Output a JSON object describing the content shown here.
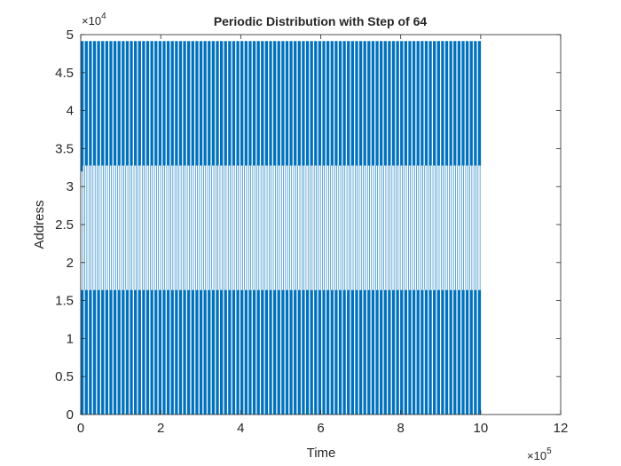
{
  "chart_data": {
    "type": "line",
    "title": "Periodic Distribution with Step of 64",
    "xlabel": "Time",
    "ylabel": "Address",
    "xlim": [
      0,
      1200000
    ],
    "ylim": [
      0,
      50000
    ],
    "x_ticks": [
      0,
      200000,
      400000,
      600000,
      800000,
      1000000,
      1200000
    ],
    "x_tick_labels": [
      "0",
      "2",
      "4",
      "6",
      "8",
      "10",
      "12"
    ],
    "y_ticks": [
      0,
      5000,
      10000,
      15000,
      20000,
      25000,
      30000,
      35000,
      40000,
      45000,
      50000
    ],
    "y_tick_labels": [
      "0",
      "0.5",
      "1",
      "1.5",
      "2",
      "2.5",
      "3",
      "3.5",
      "4",
      "4.5",
      "5"
    ],
    "x_exponent": {
      "base": "×10",
      "power": "5"
    },
    "y_exponent": {
      "base": "×10",
      "power": "4"
    },
    "grid": false,
    "line_color": "#0072BD",
    "series": [
      {
        "period": 10240,
        "x_range": [
          0,
          1000000
        ],
        "bands": [
          {
            "y_min": 0,
            "y_max": 16384,
            "fill": "dense"
          },
          {
            "y_min": 16384,
            "y_max": 32768,
            "fill": "sparse"
          },
          {
            "y_min": 32768,
            "y_max": 49152,
            "fill": "dense"
          }
        ]
      }
    ]
  }
}
